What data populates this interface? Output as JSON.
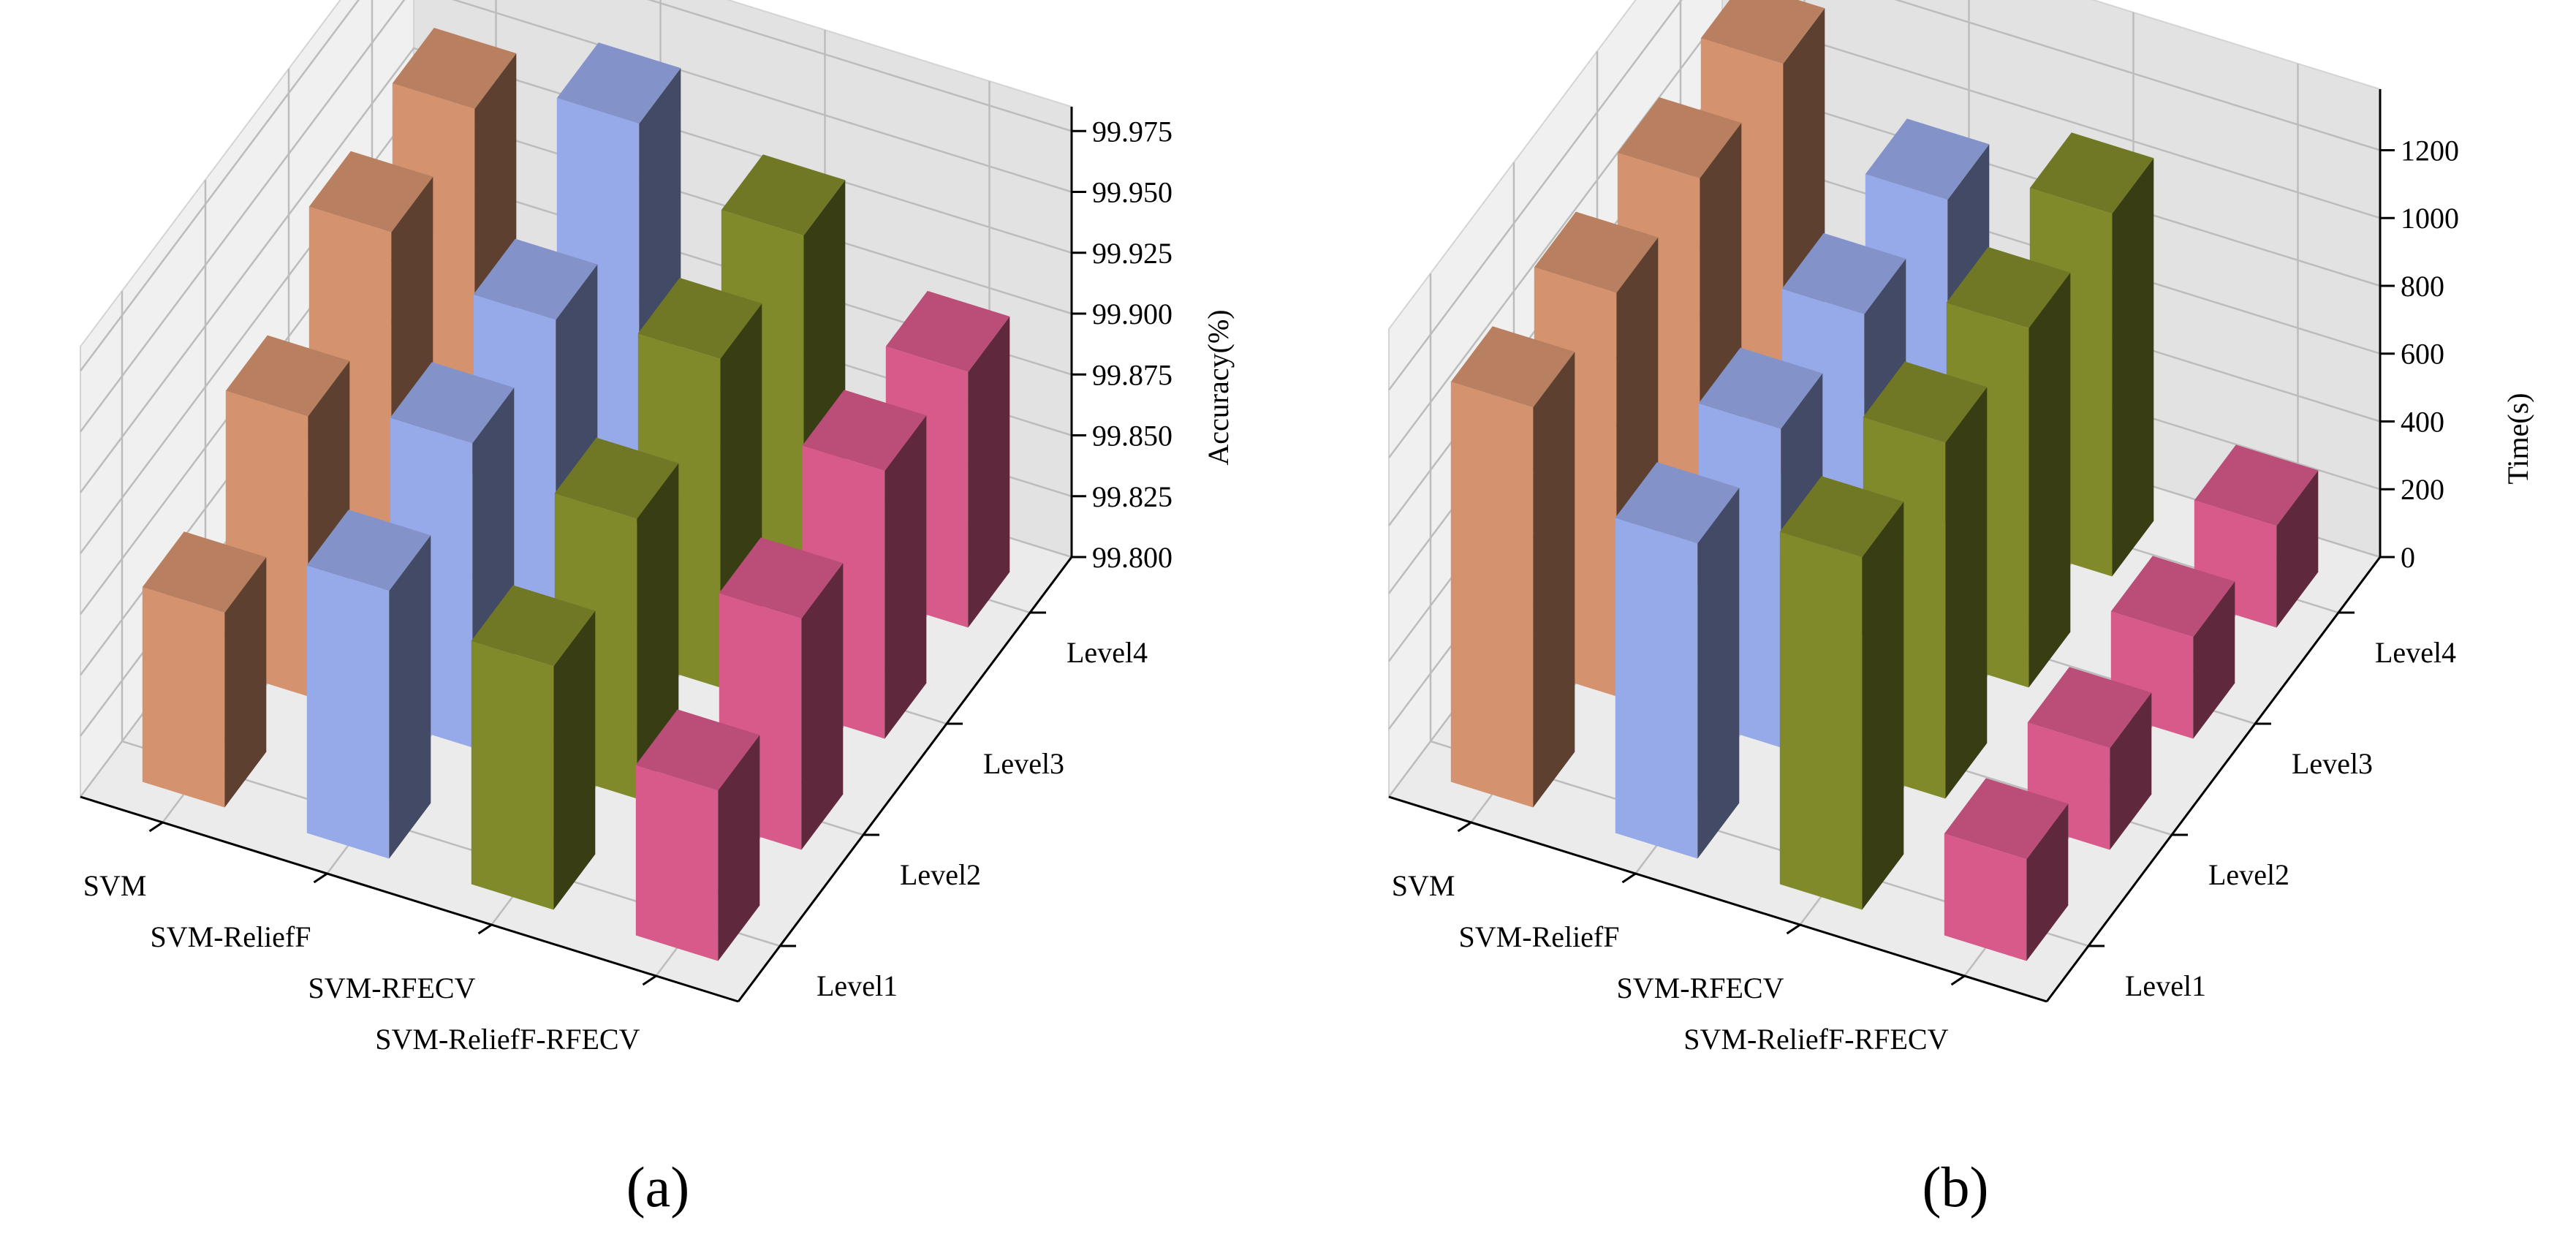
{
  "chart_data": [
    {
      "type": "bar3d",
      "panel": "a",
      "caption": "(a)",
      "zlabel": "Accuracy(%)",
      "categories": [
        "SVM",
        "SVM-ReliefF",
        "SVM-RFECV",
        "SVM-ReliefF-RFECV"
      ],
      "levels": [
        "Level1",
        "Level2",
        "Level3",
        "Level4"
      ],
      "zlim": [
        99.8,
        99.985
      ],
      "zticks": [
        99.8,
        99.825,
        99.85,
        99.875,
        99.9,
        99.925,
        99.95,
        99.975
      ],
      "ztick_labels": [
        "99.800",
        "99.825",
        "99.850",
        "99.875",
        "99.900",
        "99.925",
        "99.950",
        "99.975"
      ],
      "series": [
        {
          "name": "SVM",
          "color": "#d4926e",
          "values": [
            99.88,
            99.915,
            99.945,
            99.95
          ]
        },
        {
          "name": "SVM-ReliefF",
          "color": "#96a9e8",
          "values": [
            99.91,
            99.925,
            99.93,
            99.965
          ]
        },
        {
          "name": "SVM-RFECV",
          "color": "#818a2b",
          "values": [
            99.9,
            99.915,
            99.935,
            99.94
          ]
        },
        {
          "name": "SVM-ReliefF-RFECV",
          "color": "#d75a8a",
          "values": [
            99.87,
            99.895,
            99.91,
            99.905
          ]
        }
      ]
    },
    {
      "type": "bar3d",
      "panel": "b",
      "caption": "(b)",
      "zlabel": "Time(s)",
      "categories": [
        "SVM",
        "SVM-ReliefF",
        "SVM-RFECV",
        "SVM-ReliefF-RFECV"
      ],
      "levels": [
        "Level1",
        "Level2",
        "Level3",
        "Level4"
      ],
      "zlim": [
        0,
        1380
      ],
      "zticks": [
        0,
        200,
        400,
        600,
        800,
        1000,
        1200
      ],
      "ztick_labels": [
        "0",
        "200",
        "400",
        "600",
        "800",
        "1000",
        "1200"
      ],
      "series": [
        {
          "name": "SVM",
          "color": "#d4926e",
          "values": [
            1180,
            1190,
            1200,
            1210
          ]
        },
        {
          "name": "SVM-ReliefF",
          "color": "#96a9e8",
          "values": [
            930,
            940,
            950,
            960
          ]
        },
        {
          "name": "SVM-RFECV",
          "color": "#818a2b",
          "values": [
            1040,
            1050,
            1060,
            1070
          ]
        },
        {
          "name": "SVM-ReliefF-RFECV",
          "color": "#d75a8a",
          "values": [
            300,
            300,
            300,
            300
          ]
        }
      ]
    }
  ]
}
